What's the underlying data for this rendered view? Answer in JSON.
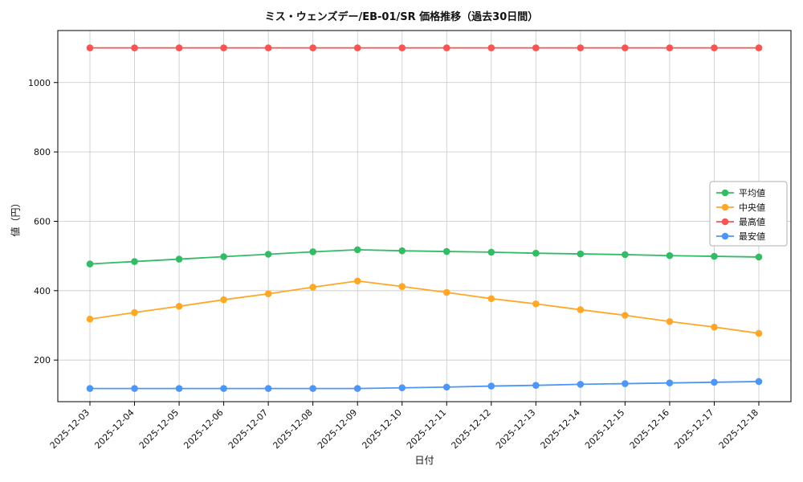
{
  "chart_data": {
    "type": "line",
    "title": "ミス・ウェンズデー/EB-01/SR 価格推移（過去30日間）",
    "xlabel": "日付",
    "ylabel": "値（円）",
    "ylim": [
      80,
      1150
    ],
    "yticks": [
      200,
      400,
      600,
      800,
      1000
    ],
    "grid": true,
    "legend_position": "center-right",
    "categories": [
      "2025-12-03",
      "2025-12-04",
      "2025-12-05",
      "2025-12-06",
      "2025-12-07",
      "2025-12-08",
      "2025-12-09",
      "2025-12-10",
      "2025-12-11",
      "2025-12-12",
      "2025-12-13",
      "2025-12-14",
      "2025-12-15",
      "2025-12-16",
      "2025-12-17",
      "2025-12-18"
    ],
    "series": [
      {
        "name": "平均値",
        "color": "#33bb66",
        "values": [
          477,
          484,
          491,
          498,
          505,
          512,
          518,
          515,
          513,
          511,
          508,
          506,
          504,
          501,
          499,
          497
        ]
      },
      {
        "name": "中央値",
        "color": "#ffa726",
        "values": [
          318,
          337,
          355,
          374,
          391,
          410,
          428,
          412,
          395,
          377,
          362,
          345,
          329,
          311,
          295,
          277
        ]
      },
      {
        "name": "最高値",
        "color": "#f75454",
        "values": [
          1100,
          1100,
          1100,
          1100,
          1100,
          1100,
          1100,
          1100,
          1100,
          1100,
          1100,
          1100,
          1100,
          1100,
          1100,
          1100
        ]
      },
      {
        "name": "最安値",
        "color": "#4e96f5",
        "values": [
          118,
          118,
          118,
          118,
          118,
          118,
          118,
          120,
          122,
          125,
          127,
          130,
          132,
          134,
          136,
          138
        ]
      }
    ]
  }
}
